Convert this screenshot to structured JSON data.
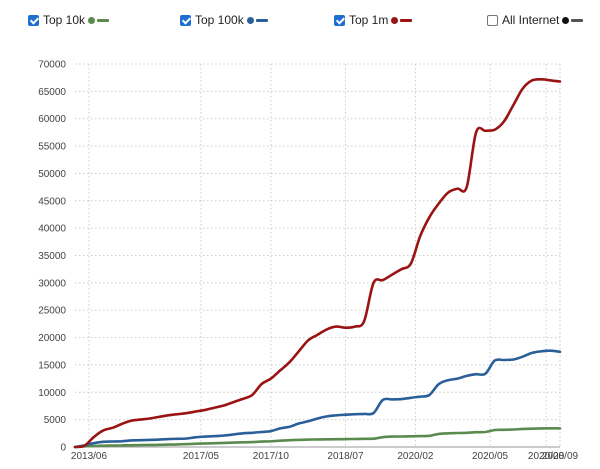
{
  "colors": {
    "top10k": "#5a8a4e",
    "top100k": "#2a5f9a",
    "top1m": "#9b1212",
    "all_internet": "#111111",
    "grid": "#cccccc",
    "checkbox_accent": "#1e6fd0"
  },
  "legend": [
    {
      "label": "Top 10k",
      "checked": true
    },
    {
      "label": "Top 100k",
      "checked": true
    },
    {
      "label": "Top 1m",
      "checked": true
    },
    {
      "label": "All Internet",
      "checked": false
    }
  ],
  "chart_data": {
    "type": "line",
    "grid": true,
    "legend_position": "top",
    "ylim": [
      0,
      70000
    ],
    "y_ticks": [
      "0",
      "5000",
      "10000",
      "15000",
      "20000",
      "25000",
      "30000",
      "35000",
      "40000",
      "45000",
      "50000",
      "55000",
      "60000",
      "65000",
      "70000"
    ],
    "x_ticks": [
      "2013/06",
      "2017/05",
      "2017/10",
      "2018/07",
      "2020/02",
      "2020/05",
      "2020/08",
      "2020/09"
    ],
    "series": [
      {
        "name": "Top 10k",
        "points": [
          [
            0,
            0
          ],
          [
            2,
            120
          ],
          [
            4,
            180
          ],
          [
            6,
            230
          ],
          [
            8,
            280
          ],
          [
            10,
            300
          ],
          [
            12,
            330
          ],
          [
            14,
            350
          ],
          [
            16,
            380
          ],
          [
            18,
            400
          ],
          [
            20,
            430
          ],
          [
            22,
            470
          ],
          [
            24,
            530
          ],
          [
            26,
            600
          ],
          [
            28,
            650
          ],
          [
            30,
            700
          ],
          [
            32,
            750
          ],
          [
            34,
            800
          ],
          [
            36,
            850
          ],
          [
            38,
            900
          ],
          [
            40,
            980
          ],
          [
            42,
            1050
          ],
          [
            44,
            1150
          ],
          [
            46,
            1250
          ],
          [
            48,
            1300
          ],
          [
            50,
            1350
          ],
          [
            52,
            1380
          ],
          [
            54,
            1400
          ],
          [
            56,
            1420
          ],
          [
            58,
            1450
          ],
          [
            60,
            1470
          ],
          [
            62,
            1490
          ],
          [
            64,
            1510
          ],
          [
            66,
            1800
          ],
          [
            68,
            1900
          ],
          [
            70,
            1920
          ],
          [
            72,
            1950
          ],
          [
            74,
            2000
          ],
          [
            76,
            2050
          ],
          [
            78,
            2400
          ],
          [
            80,
            2500
          ],
          [
            82,
            2550
          ],
          [
            84,
            2600
          ],
          [
            86,
            2700
          ],
          [
            88,
            2750
          ],
          [
            90,
            3100
          ],
          [
            92,
            3150
          ],
          [
            94,
            3200
          ],
          [
            96,
            3300
          ],
          [
            98,
            3350
          ],
          [
            100,
            3400
          ],
          [
            102,
            3420
          ],
          [
            104,
            3400
          ]
        ]
      },
      {
        "name": "Top 100k",
        "points": [
          [
            0,
            0
          ],
          [
            2,
            300
          ],
          [
            4,
            700
          ],
          [
            6,
            950
          ],
          [
            8,
            1000
          ],
          [
            10,
            1050
          ],
          [
            12,
            1200
          ],
          [
            14,
            1250
          ],
          [
            16,
            1300
          ],
          [
            18,
            1350
          ],
          [
            20,
            1450
          ],
          [
            22,
            1500
          ],
          [
            24,
            1550
          ],
          [
            26,
            1800
          ],
          [
            28,
            1900
          ],
          [
            30,
            2000
          ],
          [
            32,
            2100
          ],
          [
            34,
            2300
          ],
          [
            36,
            2500
          ],
          [
            38,
            2600
          ],
          [
            40,
            2750
          ],
          [
            42,
            2900
          ],
          [
            44,
            3400
          ],
          [
            46,
            3700
          ],
          [
            48,
            4300
          ],
          [
            50,
            4700
          ],
          [
            52,
            5200
          ],
          [
            54,
            5600
          ],
          [
            56,
            5800
          ],
          [
            58,
            5900
          ],
          [
            60,
            6000
          ],
          [
            62,
            6050
          ],
          [
            64,
            6200
          ],
          [
            66,
            8600
          ],
          [
            68,
            8700
          ],
          [
            70,
            8750
          ],
          [
            72,
            9000
          ],
          [
            74,
            9200
          ],
          [
            76,
            9500
          ],
          [
            78,
            11500
          ],
          [
            80,
            12200
          ],
          [
            82,
            12500
          ],
          [
            84,
            13000
          ],
          [
            86,
            13300
          ],
          [
            88,
            13400
          ],
          [
            90,
            15800
          ],
          [
            92,
            15900
          ],
          [
            94,
            16000
          ],
          [
            96,
            16500
          ],
          [
            98,
            17200
          ],
          [
            100,
            17500
          ],
          [
            102,
            17600
          ],
          [
            104,
            17400
          ]
        ]
      },
      {
        "name": "Top 1m",
        "points": [
          [
            0,
            0
          ],
          [
            2,
            200
          ],
          [
            4,
            1800
          ],
          [
            6,
            3000
          ],
          [
            8,
            3500
          ],
          [
            10,
            4200
          ],
          [
            12,
            4800
          ],
          [
            14,
            5000
          ],
          [
            16,
            5200
          ],
          [
            18,
            5500
          ],
          [
            20,
            5800
          ],
          [
            22,
            6000
          ],
          [
            24,
            6200
          ],
          [
            26,
            6500
          ],
          [
            28,
            6800
          ],
          [
            30,
            7200
          ],
          [
            32,
            7600
          ],
          [
            34,
            8200
          ],
          [
            36,
            8800
          ],
          [
            38,
            9500
          ],
          [
            40,
            11500
          ],
          [
            42,
            12500
          ],
          [
            44,
            14000
          ],
          [
            46,
            15500
          ],
          [
            48,
            17500
          ],
          [
            50,
            19500
          ],
          [
            52,
            20500
          ],
          [
            54,
            21500
          ],
          [
            56,
            22000
          ],
          [
            58,
            21800
          ],
          [
            60,
            22000
          ],
          [
            62,
            23000
          ],
          [
            64,
            30000
          ],
          [
            66,
            30500
          ],
          [
            68,
            31500
          ],
          [
            70,
            32500
          ],
          [
            72,
            33500
          ],
          [
            74,
            38500
          ],
          [
            76,
            42000
          ],
          [
            78,
            44500
          ],
          [
            80,
            46500
          ],
          [
            82,
            47200
          ],
          [
            84,
            47500
          ],
          [
            86,
            57500
          ],
          [
            88,
            57800
          ],
          [
            90,
            58000
          ],
          [
            92,
            59500
          ],
          [
            94,
            62500
          ],
          [
            96,
            65500
          ],
          [
            98,
            67000
          ],
          [
            100,
            67200
          ],
          [
            102,
            67000
          ],
          [
            104,
            66800
          ]
        ]
      },
      {
        "name": "All Internet",
        "points": []
      }
    ]
  }
}
